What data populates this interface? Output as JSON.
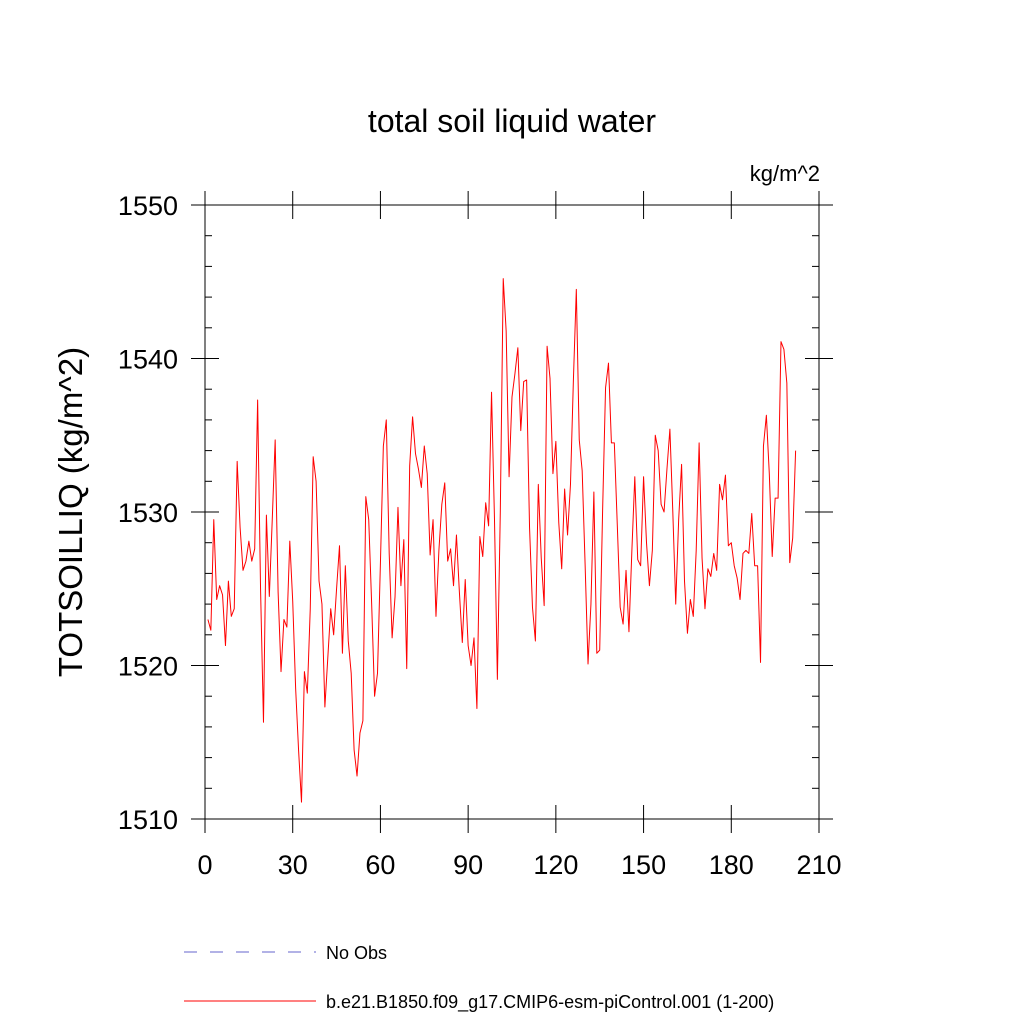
{
  "chart_data": {
    "type": "line",
    "title": "total soil liquid water",
    "units": "kg/m^2",
    "ylabel": "TOTSOILLIQ  (kg/m^2)",
    "xlabel": "",
    "xlim": [
      0,
      210
    ],
    "ylim": [
      1510,
      1550
    ],
    "xticks": [
      0,
      30,
      60,
      90,
      120,
      150,
      180,
      210
    ],
    "yticks": [
      1510,
      1520,
      1530,
      1540,
      1550
    ],
    "x_tick_labels": [
      "0",
      "30",
      "60",
      "90",
      "120",
      "150",
      "180",
      "210"
    ],
    "y_tick_labels": [
      "1510",
      "1520",
      "1530",
      "1540",
      "1550"
    ],
    "legend": [
      {
        "label": "No Obs",
        "color": "#6666cc",
        "style": "dashed"
      },
      {
        "label": "b.e21.B1850.f09_g17.CMIP6-esm-piControl.001 (1-200)",
        "color": "#ff0000",
        "style": "solid"
      }
    ],
    "series": [
      {
        "name": "b.e21.B1850.f09_g17.CMIP6-esm-piControl.001 (1-200)",
        "color": "#ff0000",
        "x_start": 1,
        "x_step": 1,
        "values": [
          1523.0,
          1522.3,
          1529.5,
          1524.3,
          1525.2,
          1524.6,
          1521.3,
          1525.5,
          1523.2,
          1523.7,
          1533.3,
          1529.0,
          1526.2,
          1526.8,
          1528.1,
          1526.8,
          1527.6,
          1537.3,
          1525.0,
          1516.3,
          1529.8,
          1524.5,
          1529.5,
          1534.7,
          1524.8,
          1519.6,
          1523.0,
          1522.5,
          1528.1,
          1524.2,
          1518.5,
          1514.5,
          1511.1,
          1519.6,
          1518.2,
          1523.7,
          1533.6,
          1532.0,
          1525.5,
          1524.0,
          1517.3,
          1520.5,
          1523.7,
          1522.0,
          1525.0,
          1527.8,
          1520.8,
          1526.5,
          1521.6,
          1519.5,
          1514.5,
          1512.8,
          1515.6,
          1516.4,
          1531.0,
          1529.5,
          1524.0,
          1518.0,
          1519.5,
          1526.7,
          1534.3,
          1536.0,
          1527.3,
          1521.8,
          1524.5,
          1530.3,
          1525.2,
          1528.2,
          1519.8,
          1533.0,
          1536.2,
          1533.8,
          1532.8,
          1531.6,
          1534.3,
          1532.5,
          1527.2,
          1529.5,
          1523.2,
          1527.5,
          1530.5,
          1531.9,
          1526.8,
          1527.6,
          1525.2,
          1528.5,
          1524.8,
          1521.5,
          1525.6,
          1521.3,
          1520.0,
          1521.8,
          1517.2,
          1528.4,
          1527.1,
          1530.6,
          1529.1,
          1537.8,
          1529.6,
          1519.1,
          1530.0,
          1545.2,
          1541.8,
          1532.3,
          1537.5,
          1539.0,
          1540.7,
          1535.3,
          1538.5,
          1538.6,
          1529.0,
          1523.8,
          1521.6,
          1531.8,
          1527.0,
          1523.9,
          1540.8,
          1538.7,
          1532.5,
          1534.6,
          1529.3,
          1526.3,
          1531.5,
          1528.5,
          1531.8,
          1538.6,
          1544.5,
          1534.7,
          1532.7,
          1526.6,
          1520.1,
          1524.0,
          1531.3,
          1520.8,
          1521.0,
          1530.2,
          1538.1,
          1539.7,
          1534.5,
          1534.5,
          1529.2,
          1523.8,
          1522.7,
          1526.2,
          1522.2,
          1527.5,
          1532.3,
          1526.9,
          1526.5,
          1532.3,
          1528.0,
          1525.2,
          1527.5,
          1535.0,
          1534.0,
          1530.5,
          1530.0,
          1532.8,
          1535.4,
          1530.0,
          1524.0,
          1529.5,
          1533.1,
          1525.5,
          1522.1,
          1524.3,
          1523.2,
          1527.5,
          1534.5,
          1527.0,
          1523.7,
          1526.3,
          1525.8,
          1527.3,
          1526.2,
          1531.8,
          1530.8,
          1532.4,
          1527.8,
          1528.0,
          1526.5,
          1525.7,
          1524.3,
          1527.3,
          1527.5,
          1527.3,
          1529.9,
          1526.5,
          1526.5,
          1520.2,
          1534.3,
          1536.3,
          1532.5,
          1527.1,
          1530.9,
          1530.9,
          1541.1,
          1540.6,
          1538.4,
          1526.7,
          1528.3,
          1534.0
        ]
      }
    ]
  }
}
